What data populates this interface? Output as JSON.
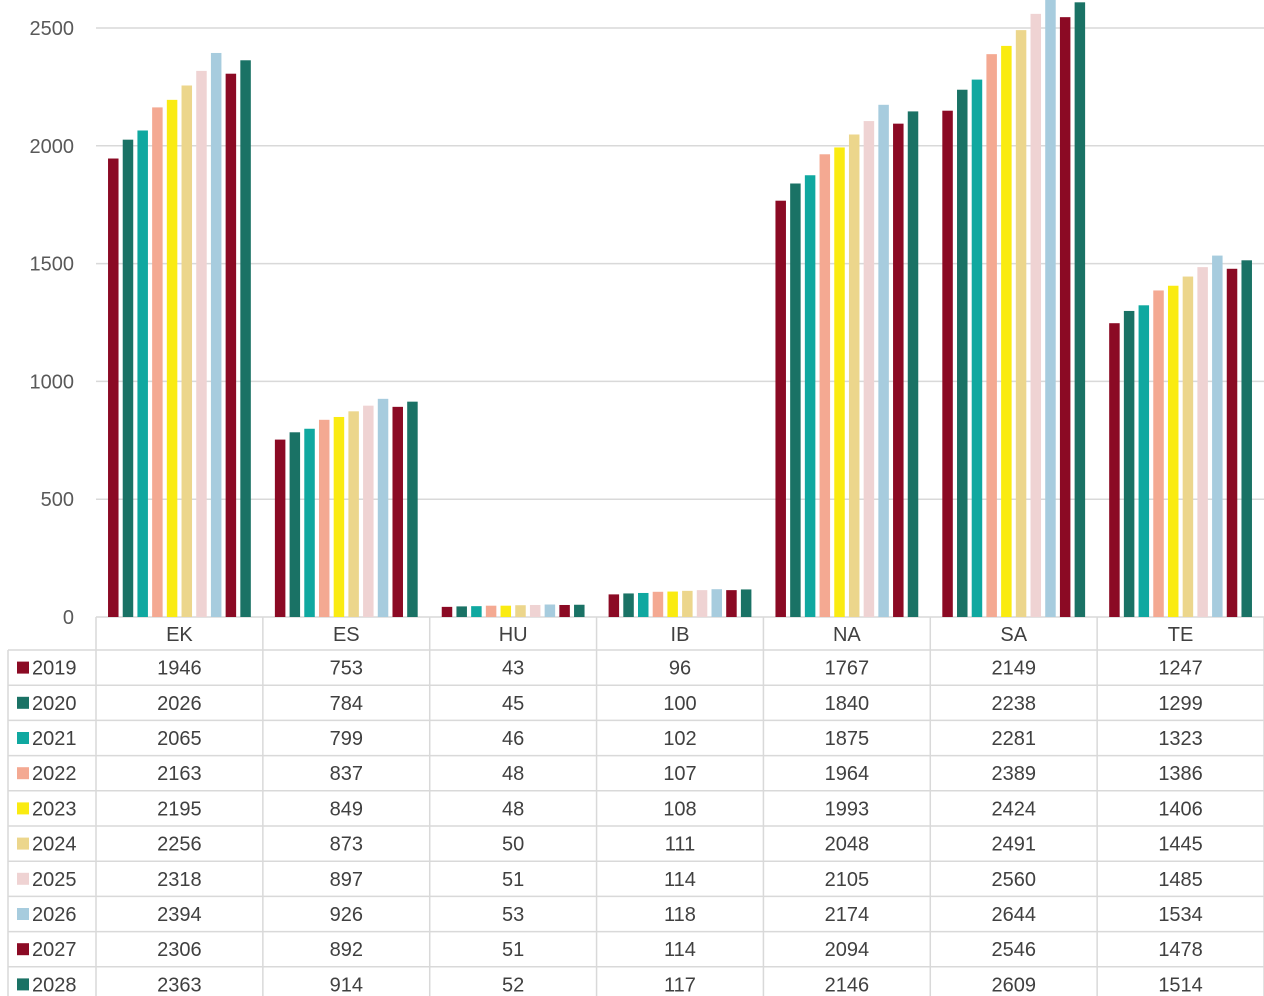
{
  "chart_data": {
    "type": "bar",
    "title": "",
    "xlabel": "",
    "ylabel": "",
    "ylim": [
      0,
      2500
    ],
    "yticks": [
      0,
      500,
      1000,
      1500,
      2000,
      2500
    ],
    "grid": true,
    "legend": "data-table-below",
    "categories": [
      "EK",
      "ES",
      "HU",
      "IB",
      "NA",
      "SA",
      "TE"
    ],
    "series": [
      {
        "name": "2019",
        "color": "#8B0A24",
        "values": [
          1946,
          753,
          43,
          96,
          1767,
          2149,
          1247
        ]
      },
      {
        "name": "2020",
        "color": "#1A7265",
        "values": [
          2026,
          784,
          45,
          100,
          1840,
          2238,
          1299
        ]
      },
      {
        "name": "2021",
        "color": "#10A8A0",
        "values": [
          2065,
          799,
          46,
          102,
          1875,
          2281,
          1323
        ]
      },
      {
        "name": "2022",
        "color": "#F4A992",
        "values": [
          2163,
          837,
          48,
          107,
          1964,
          2389,
          1386
        ]
      },
      {
        "name": "2023",
        "color": "#FAEB11",
        "values": [
          2195,
          849,
          48,
          108,
          1993,
          2424,
          1406
        ]
      },
      {
        "name": "2024",
        "color": "#ECD68C",
        "values": [
          2256,
          873,
          50,
          111,
          2048,
          2491,
          1445
        ]
      },
      {
        "name": "2025",
        "color": "#EFD3D3",
        "values": [
          2318,
          897,
          51,
          114,
          2105,
          2560,
          1485
        ]
      },
      {
        "name": "2026",
        "color": "#A7CCDE",
        "values": [
          2394,
          926,
          53,
          118,
          2174,
          2644,
          1534
        ]
      },
      {
        "name": "2027",
        "color": "#8B0A24",
        "values": [
          2306,
          892,
          51,
          114,
          2094,
          2546,
          1478
        ]
      },
      {
        "name": "2028",
        "color": "#1A7265",
        "values": [
          2363,
          914,
          52,
          117,
          2146,
          2609,
          1514
        ]
      }
    ]
  },
  "colors": {
    "gridline": "#D9D9D9",
    "table_border": "#D9D9D9",
    "text": "#404040"
  }
}
